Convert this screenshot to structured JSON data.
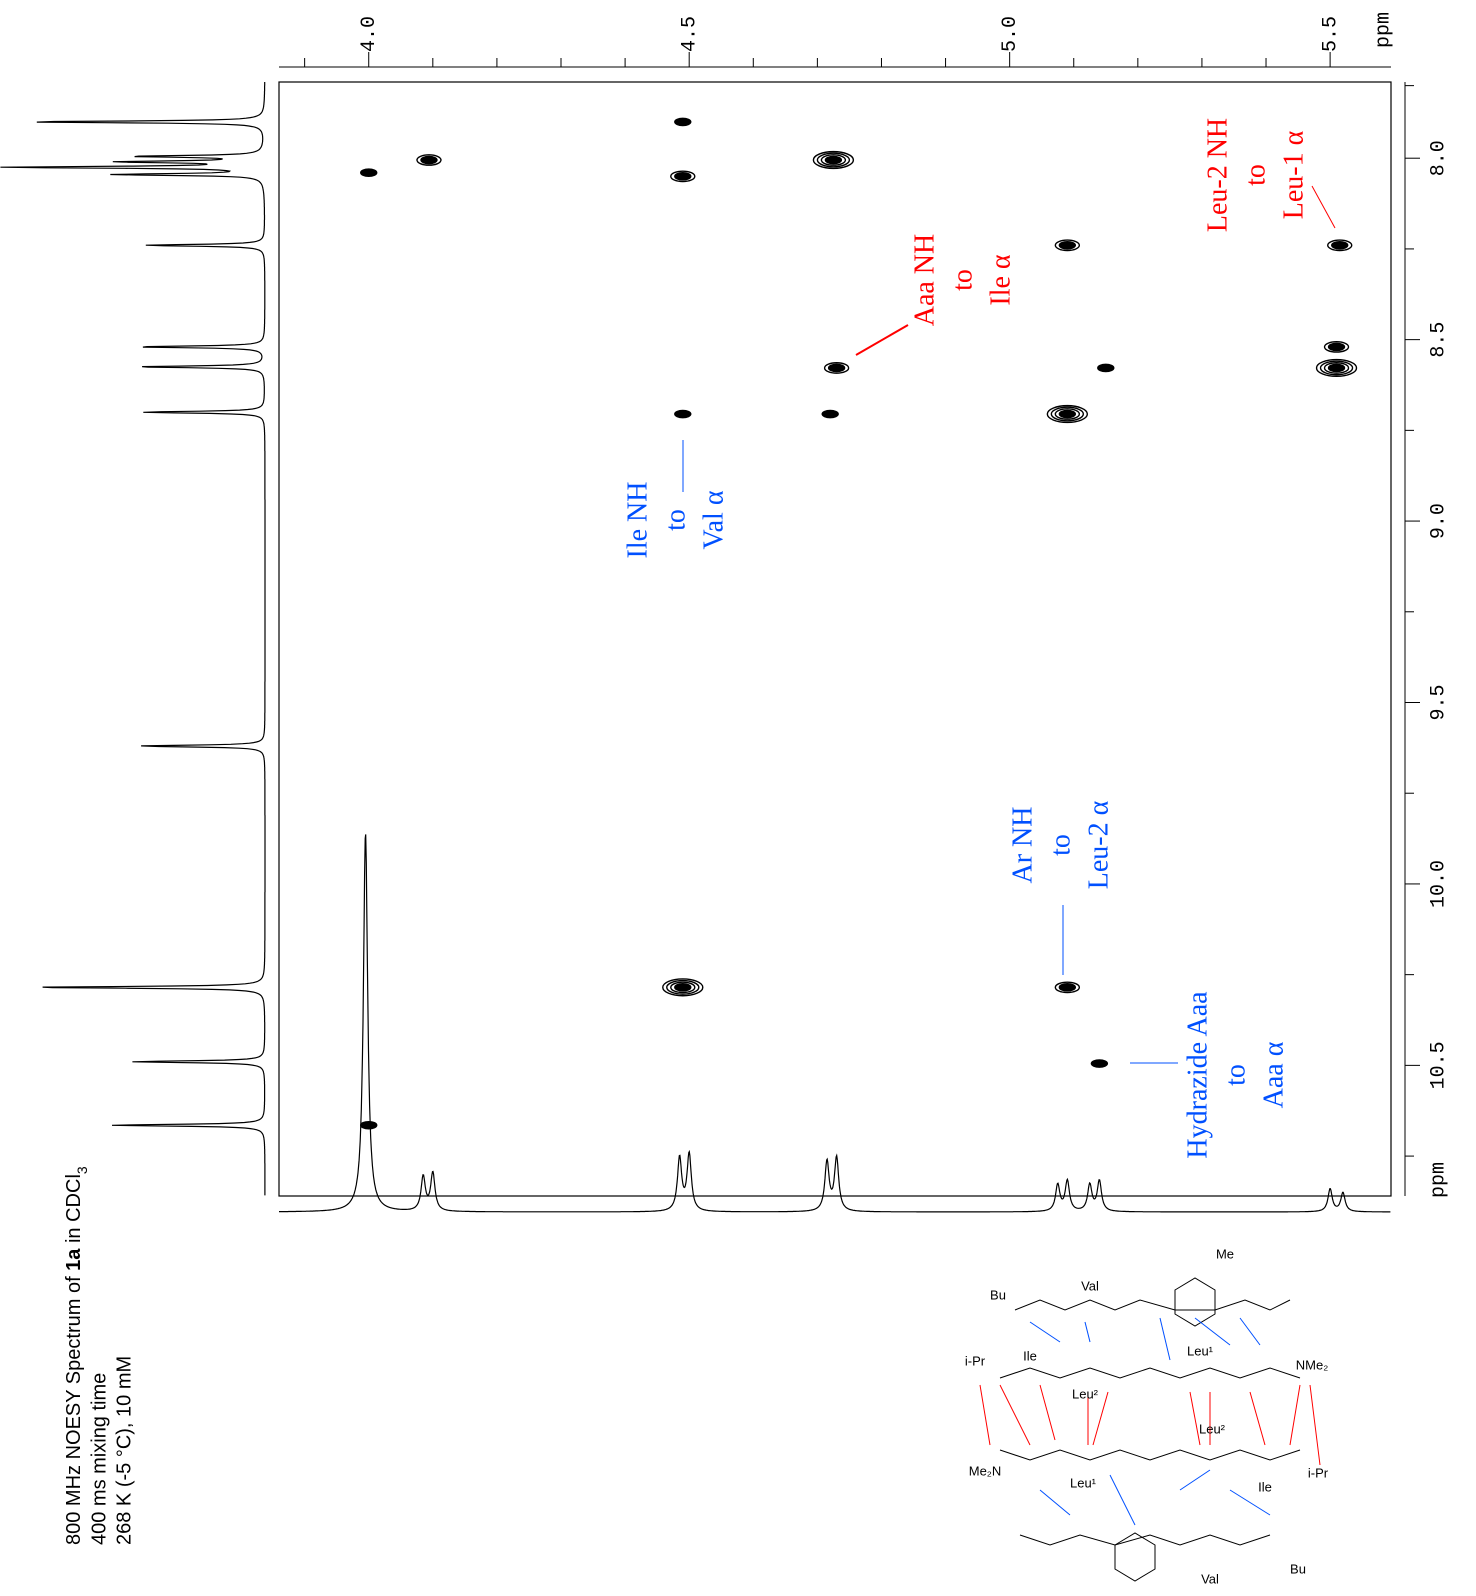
{
  "chart_data": {
    "type": "contour",
    "caption": [
      "800 MHz NOESY Spectrum of ",
      "1a",
      " in CDCl",
      "3"
    ],
    "caption_lines": [
      "400 ms mixing time",
      "268 K (-5 °C), 10 mM"
    ],
    "x_unit": "ppm",
    "y_unit": "ppm",
    "xlim": [
      3.86,
      5.595
    ],
    "ylim": [
      7.79,
      10.86
    ],
    "xticks": [
      {
        "value": 4,
        "label": "4.0"
      },
      {
        "value": 4.5,
        "label": "4.5"
      },
      {
        "value": 5,
        "label": "5.0"
      },
      {
        "value": 5.5,
        "label": "5.5"
      }
    ],
    "xminorticks": [
      3.9,
      4.1,
      4.2,
      4.3,
      4.4,
      4.6,
      4.7,
      4.8,
      4.9,
      5.1,
      5.2,
      5.3,
      5.4
    ],
    "yticks": [
      {
        "value": 8,
        "label": "8.0"
      },
      {
        "value": 8.5,
        "label": "8.5"
      },
      {
        "value": 9,
        "label": "9.0"
      },
      {
        "value": 9.5,
        "label": "9.5"
      },
      {
        "value": 10,
        "label": "10.0"
      },
      {
        "value": 10.5,
        "label": "10.5"
      }
    ],
    "yminorticks": [
      7.8,
      8.25,
      8.75,
      9.25,
      9.75,
      10.25,
      10.75
    ],
    "color": "#000000",
    "x": [
      4.0,
      4.094,
      4.49,
      4.49,
      4.725,
      5.09,
      5.515,
      5.51,
      5.51,
      4.73,
      5.15,
      4.49,
      4.72,
      5.09,
      4.49,
      5.09,
      5.14,
      4.0
    ],
    "values": [
      8.04,
      8.005,
      7.9,
      8.05,
      8.005,
      8.24,
      8.24,
      8.52,
      8.578,
      8.578,
      8.578,
      8.705,
      8.705,
      8.705,
      10.285,
      10.285,
      10.495,
      10.665
    ],
    "intensity": [
      1,
      2,
      1,
      2,
      4,
      2,
      2,
      2,
      4,
      2,
      1,
      1,
      1,
      4,
      4,
      2,
      1,
      1
    ],
    "left_projection": {
      "ppm": [
        7.9,
        7.995,
        8.01,
        8.025,
        8.045,
        8.24,
        8.52,
        8.575,
        8.7,
        9.62,
        10.285,
        10.49,
        10.665
      ],
      "heights": [
        0.92,
        0.5,
        0.55,
        1.0,
        0.58,
        0.47,
        0.5,
        0.5,
        0.48,
        0.49,
        0.91,
        0.52,
        0.6
      ]
    },
    "bottom_projection": {
      "ppm": [
        3.995,
        4.085,
        4.1,
        4.485,
        4.5,
        4.715,
        4.73,
        5.075,
        5.09,
        5.125,
        5.14,
        5.5,
        5.52
      ],
      "heights": [
        1.0,
        0.09,
        0.1,
        0.14,
        0.15,
        0.13,
        0.14,
        0.07,
        0.08,
        0.07,
        0.08,
        0.06,
        0.05
      ]
    },
    "annotations": [
      {
        "lines": [
          "Aaa NH",
          "to",
          "Ile α"
        ],
        "color": "#ff0000"
      },
      {
        "lines": [
          "Leu-2 NH",
          "to",
          "Leu-1 α"
        ],
        "color": "#ff0000"
      },
      {
        "lines": [
          "Ile NH",
          "to",
          "Val α"
        ],
        "color": "#0050ff"
      },
      {
        "lines": [
          "Ar NH",
          "to",
          "Leu-2 α"
        ],
        "color": "#0050ff"
      },
      {
        "lines": [
          "Hydrazide Aaa",
          "to",
          "Aaa α"
        ],
        "color": "#0050ff"
      }
    ],
    "structure_labels": [
      "Bu",
      "Val",
      "Me",
      "i-Pr",
      "Ile",
      "Leu²",
      "Leu¹",
      "NMe₂",
      "Me₂N",
      "Ile",
      "Leu¹",
      "Leu²",
      "i-Pr",
      "Val",
      "Bu"
    ]
  }
}
